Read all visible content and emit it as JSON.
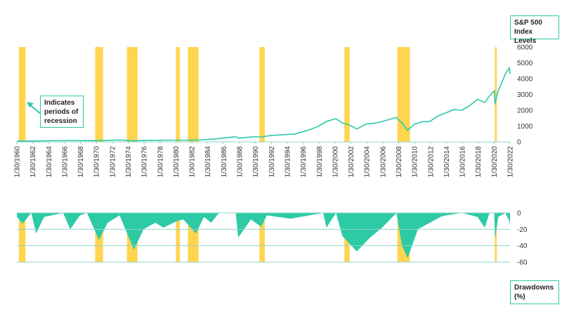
{
  "chart_data": [
    {
      "type": "line",
      "ylabel": "S&P 500 Index Levels",
      "ylim": [
        0,
        6000
      ],
      "yticks": [
        "0",
        "1000",
        "2000",
        "3000",
        "4000",
        "5000",
        "6000"
      ],
      "xticks": [
        "1/30/1960",
        "1/30/1962",
        "1/30/1964",
        "1/30/1966",
        "1/30/1968",
        "1/30/1970",
        "1/30/1972",
        "1/30/1974",
        "1/30/1976",
        "1/30/1978",
        "1/30/1980",
        "1/30/1982",
        "1/30/1984",
        "1/30/1986",
        "1/30/1988",
        "1/30/1990",
        "1/30/1992",
        "1/30/1994",
        "1/30/1996",
        "1/30/1998",
        "1/30/2000",
        "1/30/2002",
        "1/30/2004",
        "1/30/2006",
        "1/30/2008",
        "1/30/2010",
        "1/30/2012",
        "1/30/2014",
        "1/30/2016",
        "1/30/2018",
        "1/30/2020",
        "1/30/2022"
      ],
      "xlim": [
        1960.08,
        2022.08
      ],
      "x": [
        1960.08,
        1962.0,
        1966.0,
        1970.0,
        1973.0,
        1974.8,
        1976.0,
        1980.0,
        1982.6,
        1985.0,
        1987.6,
        1987.9,
        1990.0,
        1990.8,
        1992.0,
        1994.0,
        1995.0,
        1996.0,
        1997.0,
        1998.0,
        1999.0,
        2000.2,
        2001.0,
        2002.0,
        2002.8,
        2004.0,
        2005.0,
        2006.0,
        2007.8,
        2008.5,
        2009.2,
        2010.0,
        2011.0,
        2012.0,
        2013.0,
        2014.0,
        2015.0,
        2016.0,
        2017.0,
        2018.0,
        2018.9,
        2019.5,
        2020.1,
        2020.2,
        2020.5,
        2021.0,
        2021.5,
        2022.0,
        2022.08
      ],
      "series": [
        {
          "values": [
            55,
            60,
            90,
            85,
            120,
            70,
            100,
            110,
            110,
            190,
            330,
            240,
            330,
            310,
            410,
            470,
            500,
            640,
            790,
            1000,
            1300,
            1470,
            1200,
            1050,
            820,
            1130,
            1180,
            1290,
            1550,
            1200,
            730,
            1100,
            1280,
            1300,
            1640,
            1830,
            2050,
            2000,
            2300,
            2700,
            2500,
            2900,
            3250,
            2400,
            3100,
            3700,
            4300,
            4700,
            4300
          ]
        }
      ],
      "recessions": [
        [
          1960.33,
          1961.17
        ],
        [
          1969.92,
          1970.92
        ],
        [
          1973.92,
          1975.25
        ],
        [
          1980.08,
          1980.58
        ],
        [
          1981.58,
          1982.92
        ],
        [
          1990.58,
          1991.25
        ],
        [
          2001.25,
          2001.92
        ],
        [
          2007.92,
          2009.5
        ],
        [
          2020.17,
          2020.42
        ]
      ],
      "annotation": "Indicates periods of recession"
    },
    {
      "type": "area",
      "ylabel": "Drawdowns (%)",
      "ylim": [
        -60,
        0
      ],
      "yticks": [
        "0",
        "-20",
        "-40",
        "-60"
      ],
      "xlim": [
        1960.08,
        2022.08
      ],
      "x": [
        1960.08,
        1960.8,
        1961.9,
        1962.5,
        1963.5,
        1965.9,
        1966.8,
        1968.0,
        1968.9,
        1970.4,
        1971.5,
        1973.0,
        1974.8,
        1976.0,
        1977.5,
        1978.5,
        1980.2,
        1981.0,
        1982.6,
        1983.6,
        1984.5,
        1985.5,
        1987.6,
        1987.9,
        1988.5,
        1989.5,
        1990.8,
        1991.5,
        1994.5,
        1998.6,
        1999.0,
        2000.2,
        2001.0,
        2002.8,
        2004.5,
        2006.0,
        2007.8,
        2008.5,
        2009.2,
        2010.5,
        2012.0,
        2013.5,
        2016.0,
        2018.0,
        2018.9,
        2019.5,
        2020.1,
        2020.2,
        2020.6,
        2021.5,
        2022.0,
        2022.08
      ],
      "values": [
        -5,
        -13,
        0,
        -25,
        -5,
        0,
        -20,
        -3,
        0,
        -33,
        -12,
        -3,
        -45,
        -20,
        -12,
        -18,
        -10,
        -8,
        -25,
        -5,
        -12,
        0,
        0,
        -30,
        -22,
        -8,
        -17,
        -3,
        -7,
        0,
        -18,
        0,
        -28,
        -47,
        -30,
        -18,
        0,
        -40,
        -55,
        -20,
        -12,
        -4,
        0,
        -5,
        -18,
        0,
        0,
        -32,
        -5,
        0,
        -10,
        -15
      ]
    }
  ],
  "upper_label_line1": "S&P 500",
  "upper_label_line2": "Index Levels",
  "lower_label_line1": "Drawdowns",
  "lower_label_line2": "(%)",
  "callout_line1": "Indicates",
  "callout_line2": "periods of",
  "callout_line3": "recession",
  "colors": {
    "line": "#2dc9a8",
    "recession": "#ffd54f",
    "area": "#2dcaa6",
    "axis": "#8fd6c6",
    "text": "#222222"
  }
}
